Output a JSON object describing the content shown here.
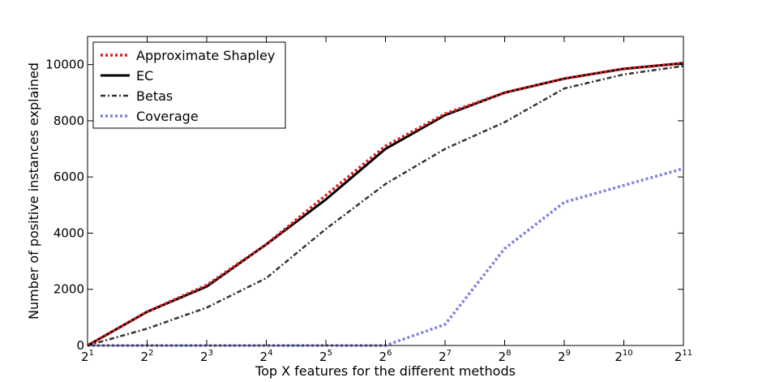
{
  "chart_data": {
    "type": "line",
    "title": "",
    "xlabel": "Top X features for the different methods",
    "ylabel": "Number of positive instances explained",
    "x_scale": "log2",
    "x": [
      2,
      4,
      8,
      16,
      32,
      64,
      128,
      256,
      512,
      1024,
      2048
    ],
    "x_tick_labels": [
      {
        "base": "2",
        "exp": "1"
      },
      {
        "base": "2",
        "exp": "2"
      },
      {
        "base": "2",
        "exp": "3"
      },
      {
        "base": "2",
        "exp": "4"
      },
      {
        "base": "2",
        "exp": "5"
      },
      {
        "base": "2",
        "exp": "6"
      },
      {
        "base": "2",
        "exp": "7"
      },
      {
        "base": "2",
        "exp": "8"
      },
      {
        "base": "2",
        "exp": "9"
      },
      {
        "base": "2",
        "exp": "10"
      },
      {
        "base": "2",
        "exp": "11"
      }
    ],
    "xlim": [
      2,
      2048
    ],
    "ylim": [
      0,
      11000
    ],
    "y_ticks": [
      0,
      2000,
      4000,
      6000,
      8000,
      10000
    ],
    "y_tick_labels": [
      "0",
      "2000",
      "4000",
      "6000",
      "8000",
      "10000"
    ],
    "grid": false,
    "legend_position": "top-left",
    "series": [
      {
        "name": "Approximate Shapley",
        "color": "#e41a1c",
        "style": "dotted",
        "values": [
          0,
          1200,
          2150,
          3600,
          5350,
          7100,
          8250,
          9000,
          9500,
          9850,
          10050
        ]
      },
      {
        "name": "EC",
        "color": "#000000",
        "style": "solid",
        "values": [
          0,
          1200,
          2100,
          3600,
          5200,
          7000,
          8200,
          9000,
          9500,
          9850,
          10050
        ]
      },
      {
        "name": "Betas",
        "color": "#333333",
        "style": "dashdot",
        "values": [
          0,
          600,
          1350,
          2400,
          4150,
          5750,
          7000,
          7950,
          9150,
          9650,
          9950
        ]
      },
      {
        "name": "Coverage",
        "color": "#8080e0",
        "style": "dotted",
        "values": [
          0,
          0,
          0,
          0,
          0,
          0,
          750,
          3450,
          5100,
          5700,
          6300
        ]
      }
    ]
  }
}
